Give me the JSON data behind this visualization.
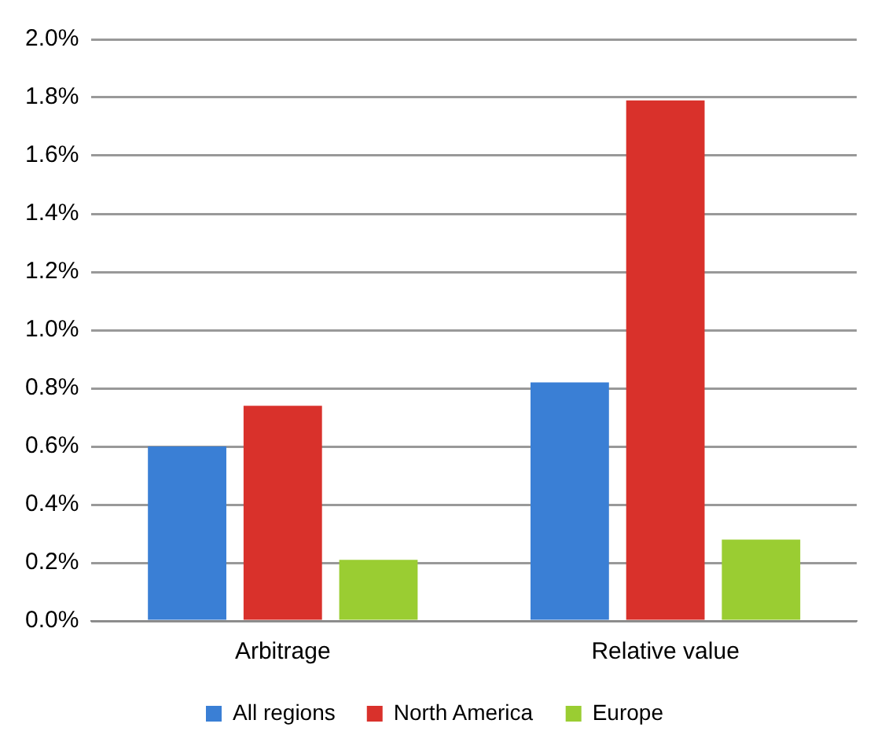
{
  "chart_data": {
    "type": "bar",
    "categories": [
      "Arbitrage",
      "Relative value"
    ],
    "series": [
      {
        "name": "All regions",
        "color": "#3a7fd5",
        "values": [
          0.6,
          0.82
        ]
      },
      {
        "name": "North America",
        "color": "#d9312b",
        "values": [
          0.74,
          1.79
        ]
      },
      {
        "name": "Europe",
        "color": "#9acd32",
        "values": [
          0.21,
          0.28
        ]
      }
    ],
    "ylim": [
      0,
      2.0
    ],
    "yticks": [
      {
        "value": 0,
        "label": "0.0%"
      },
      {
        "value": 0.2,
        "label": "0.2%"
      },
      {
        "value": 0.4,
        "label": "0.4%"
      },
      {
        "value": 0.6,
        "label": "0.6%"
      },
      {
        "value": 0.8,
        "label": "0.8%"
      },
      {
        "value": 1.0,
        "label": "1.0%"
      },
      {
        "value": 1.2,
        "label": "1.2%"
      },
      {
        "value": 1.4,
        "label": "1.4%"
      },
      {
        "value": 1.6,
        "label": "1.6%"
      },
      {
        "value": 1.8,
        "label": "1.8%"
      },
      {
        "value": 2.0,
        "label": "2.0%"
      }
    ],
    "grid": "y",
    "legend": "bottom"
  }
}
